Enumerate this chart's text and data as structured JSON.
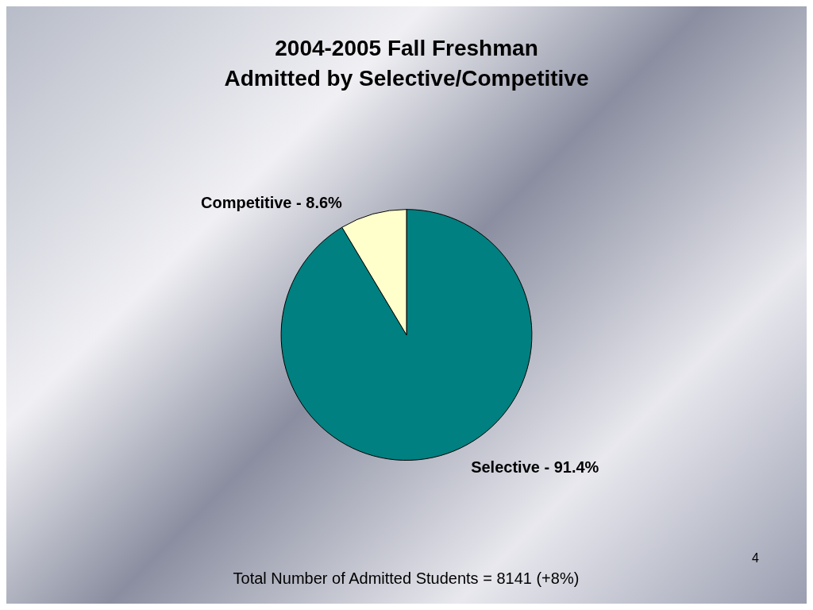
{
  "chart_data": {
    "type": "pie",
    "title": "2004-2005 Fall Freshman\nAdmitted by Selective/Competitive",
    "categories": [
      "Selective - 91.4%",
      "Competitive - 8.6%"
    ],
    "values": [
      91.4,
      8.6
    ],
    "colors": [
      "#008080",
      "#ffffcc"
    ],
    "legend": false,
    "annotations": [
      "Total Number of Admitted Students = 8141 (+8%)",
      "4"
    ]
  }
}
